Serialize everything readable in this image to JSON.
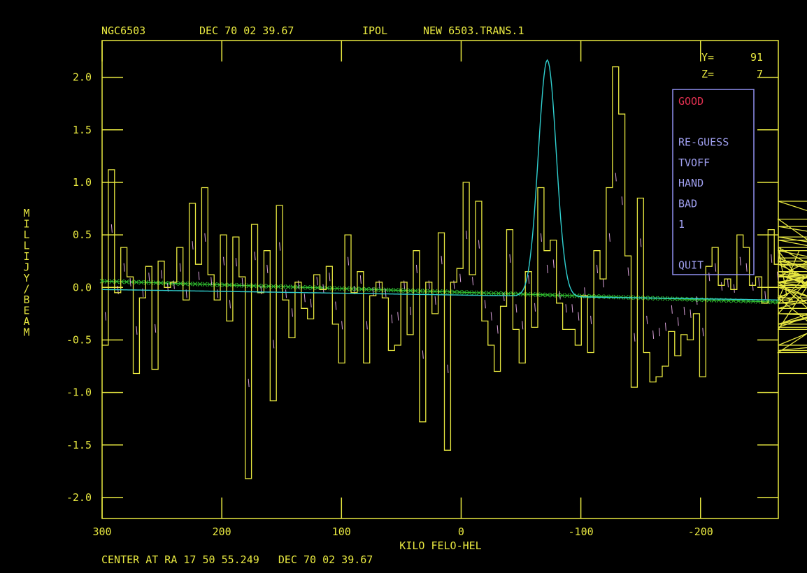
{
  "header": {
    "object": "NGC6503",
    "dec_label": "DEC 70 02 39.67",
    "stokes": "IPOL",
    "file": "NEW 6503.TRANS.1"
  },
  "cursor_readout": {
    "y_label": "Y=",
    "y_value": "91",
    "z_label": "Z=",
    "z_value": "7"
  },
  "footer": {
    "center": "CENTER AT RA 17 50 55.249   DEC 70 02 39.67"
  },
  "colors": {
    "axes": "#e8e840",
    "histogram": "#e8e840",
    "model": "#d8a0d8",
    "gaussian_fit": "#30d0d0",
    "baseline": "#30c030",
    "menu_border": "#9090f0",
    "menu_text": "#a0a0f0",
    "menu_selected": "#e03050"
  },
  "menu": {
    "items": [
      {
        "label": "GOOD",
        "selected": true
      },
      {
        "label": "",
        "selected": false
      },
      {
        "label": "RE-GUESS",
        "selected": false
      },
      {
        "label": "TVOFF",
        "selected": false
      },
      {
        "label": "HAND",
        "selected": false
      },
      {
        "label": "BAD",
        "selected": false
      },
      {
        "label": "1",
        "selected": false
      },
      {
        "label": "",
        "selected": false
      },
      {
        "label": "QUIT",
        "selected": false
      }
    ]
  },
  "chart_data": {
    "type": "line",
    "title": "",
    "xlabel": "KILO FELO-HEL",
    "ylabel": "MILLIJY/BEAM",
    "xlim": [
      300,
      -265
    ],
    "ylim": [
      -2.2,
      2.35
    ],
    "xticks": [
      300,
      200,
      100,
      0,
      -100,
      -200
    ],
    "xtick_labels": [
      "300",
      "200",
      "100",
      "0",
      "-100",
      "-200"
    ],
    "yticks": [
      2.0,
      1.5,
      1.0,
      0.5,
      0.0,
      -0.5,
      -1.0,
      -1.5,
      -2.0
    ],
    "ytick_labels": [
      "2.0",
      "1.5",
      "1.0",
      "0.5",
      "0.0",
      "-0.5",
      "-1.0",
      "-1.5",
      "-2.0"
    ],
    "grid": false,
    "histogram": {
      "name": "spectrum",
      "x_start": 300,
      "channel_width": -5.2,
      "values": [
        -0.55,
        1.12,
        -0.05,
        0.38,
        0.1,
        -0.82,
        -0.1,
        0.2,
        -0.78,
        0.25,
        0.0,
        0.05,
        0.38,
        -0.12,
        0.8,
        0.22,
        0.95,
        0.12,
        -0.12,
        0.5,
        -0.32,
        0.48,
        0.1,
        -1.82,
        0.6,
        -0.05,
        0.35,
        -1.08,
        0.78,
        -0.12,
        -0.48,
        0.05,
        -0.2,
        -0.3,
        0.12,
        -0.02,
        0.2,
        -0.35,
        -0.72,
        0.5,
        -0.05,
        0.15,
        -0.72,
        -0.08,
        0.05,
        -0.1,
        -0.6,
        -0.55,
        0.05,
        -0.45,
        0.35,
        -1.28,
        0.05,
        -0.25,
        0.52,
        -1.55,
        0.05,
        0.18,
        1.0,
        0.12,
        0.82,
        -0.32,
        -0.55,
        -0.8,
        -0.18,
        0.55,
        -0.4,
        -0.72,
        0.15,
        -0.38,
        0.95,
        0.35,
        0.45,
        -0.15,
        -0.4,
        -0.4,
        -0.55,
        -0.08,
        -0.62,
        0.35,
        0.08,
        0.95,
        2.1,
        1.65,
        0.3,
        -0.95,
        0.85,
        -0.62,
        -0.9,
        -0.85,
        -0.75,
        -0.42,
        -0.65,
        -0.45,
        -0.5,
        -0.25,
        -0.85,
        0.2,
        0.38,
        0.02,
        0.08,
        -0.02,
        0.5,
        0.38,
        0.02,
        0.1,
        -0.15,
        0.55,
        0.22,
        0.38,
        -0.08,
        -0.12,
        0.35,
        0.0,
        -0.1,
        -0.4,
        0.25,
        -0.15,
        0.38,
        0.05,
        -0.55,
        -0.25,
        0.65,
        0.05,
        -0.62,
        0.02,
        -0.35,
        -0.1,
        0.45,
        0.22,
        -0.38,
        0.1,
        0.82,
        0.35,
        0.05,
        0.28,
        -0.35,
        0.22,
        0.05,
        0.05,
        -0.25,
        -0.35,
        -0.35,
        0.12,
        0.1,
        0.05,
        0.48,
        0.1,
        0.25,
        -0.15,
        0.12,
        -0.6,
        -0.35,
        0.15,
        -0.2,
        0.58,
        0.12,
        -0.82
      ]
    },
    "gaussian_fit": {
      "name": "fit",
      "amplitude": 2.25,
      "center": -72,
      "sigma": 7.5,
      "baseline_at_300": -0.02,
      "baseline_at_-265": -0.12
    },
    "baseline": {
      "name": "baseline",
      "x": [
        300,
        -265
      ],
      "y": [
        0.06,
        -0.14
      ]
    }
  }
}
